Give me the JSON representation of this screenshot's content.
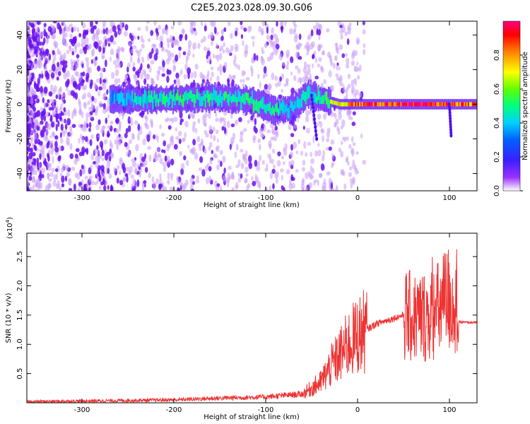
{
  "title": "C2E5.2023.028.09.30.G06",
  "colorbar": {
    "label": "Normalized spectral amplitude",
    "ticks": [
      "0.0",
      "0.2",
      "0.4",
      "0.6",
      "0.8"
    ],
    "range": [
      0,
      1
    ]
  },
  "chart_data": [
    {
      "type": "heatmap",
      "xlabel": "Height of straight line (km)",
      "ylabel": "Frequency (Hz)",
      "xlim": [
        -360,
        130
      ],
      "ylim": [
        -50,
        48
      ],
      "xticks": [
        "-300",
        "-200",
        "-100",
        "0",
        "100"
      ],
      "yticks": [
        "-40",
        "-20",
        "0",
        "20",
        "40"
      ],
      "ridge": [
        {
          "x": -270,
          "freq": 3,
          "amp": 0.35
        },
        {
          "x": -240,
          "freq": 3,
          "amp": 0.45
        },
        {
          "x": -200,
          "freq": 3,
          "amp": 0.5
        },
        {
          "x": -160,
          "freq": 4,
          "amp": 0.5
        },
        {
          "x": -130,
          "freq": 3,
          "amp": 0.5
        },
        {
          "x": -110,
          "freq": 1,
          "amp": 0.5
        },
        {
          "x": -90,
          "freq": -4,
          "amp": 0.5
        },
        {
          "x": -70,
          "freq": -2,
          "amp": 0.45
        },
        {
          "x": -55,
          "freq": 6,
          "amp": 0.45
        },
        {
          "x": -40,
          "freq": 3,
          "amp": 0.5
        },
        {
          "x": -20,
          "freq": 0,
          "amp": 0.75
        },
        {
          "x": 0,
          "freq": 0,
          "amp": 0.9
        },
        {
          "x": 40,
          "freq": 0,
          "amp": 0.95
        },
        {
          "x": 80,
          "freq": 0,
          "amp": 0.95
        },
        {
          "x": 100,
          "freq": 0,
          "amp": 0.9
        },
        {
          "x": 130,
          "freq": 0,
          "amp": 0.85
        }
      ]
    },
    {
      "type": "line",
      "xlabel": "Height of straight line (km)",
      "ylabel": "SNR (10 * v/v)",
      "y_multiplier": "(x10^4)",
      "xlim": [
        -360,
        130
      ],
      "ylim": [
        0,
        2.9
      ],
      "xticks": [
        "-300",
        "-200",
        "-100",
        "0",
        "100"
      ],
      "yticks": [
        "0.5",
        "1.0",
        "1.5",
        "2.0",
        "2.5"
      ],
      "color": "#ee3333",
      "x": [
        -360,
        -300,
        -200,
        -150,
        -100,
        -60,
        -40,
        -30,
        -20,
        -10,
        0,
        20,
        40,
        50,
        60,
        80,
        90,
        100,
        105,
        110,
        130
      ],
      "y": [
        0.02,
        0.03,
        0.05,
        0.08,
        0.1,
        0.15,
        0.35,
        0.6,
        0.8,
        1.0,
        1.15,
        1.35,
        1.45,
        1.5,
        1.45,
        1.5,
        1.6,
        1.8,
        1.6,
        1.38,
        1.37
      ]
    }
  ]
}
